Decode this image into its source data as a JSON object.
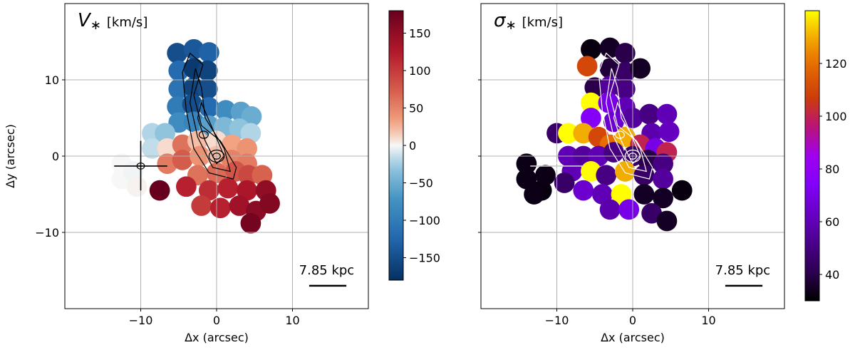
{
  "chart_data": [
    {
      "type": "heatmap",
      "title_symbol": "V",
      "title_subscript": "∗",
      "title_unit": "[km/s]",
      "xlabel": "Δx (arcsec)",
      "ylabel": "Δy (arcsec)",
      "xlim": [
        -20,
        20
      ],
      "ylim": [
        -20,
        20
      ],
      "xticks": [
        -10,
        0,
        10
      ],
      "yticks": [
        -10,
        0,
        10
      ],
      "xtick_labels": [
        "−10",
        "0",
        "10"
      ],
      "ytick_labels": [
        "−10",
        "0",
        "10"
      ],
      "grid": true,
      "colormap": "RdBu_r",
      "colorbar": {
        "min": -180,
        "max": 180,
        "ticks": [
          150,
          100,
          50,
          0,
          -50,
          -100,
          -150
        ],
        "tick_labels": [
          "150",
          "100",
          "50",
          "0",
          "−50",
          "−100",
          "−150"
        ]
      },
      "scalebar_label": "7.85 kpc",
      "contour_color": "#000000",
      "bins": [
        {
          "x": -5.2,
          "y": 13.5,
          "v": -150
        },
        {
          "x": -3.0,
          "y": 14.0,
          "v": -140
        },
        {
          "x": -1.0,
          "y": 13.6,
          "v": -130
        },
        {
          "x": -5.0,
          "y": 11.2,
          "v": -120
        },
        {
          "x": -3.0,
          "y": 11.5,
          "v": -170
        },
        {
          "x": -1.2,
          "y": 11.2,
          "v": -160
        },
        {
          "x": -5.0,
          "y": 8.8,
          "v": -110
        },
        {
          "x": -3.0,
          "y": 9.0,
          "v": -160
        },
        {
          "x": -1.2,
          "y": 8.8,
          "v": -150
        },
        {
          "x": -5.2,
          "y": 6.5,
          "v": -100
        },
        {
          "x": -3.2,
          "y": 6.8,
          "v": -150
        },
        {
          "x": -1.0,
          "y": 6.4,
          "v": -120
        },
        {
          "x": 1.2,
          "y": 6.0,
          "v": -80
        },
        {
          "x": 3.2,
          "y": 5.8,
          "v": -60
        },
        {
          "x": 4.6,
          "y": 5.2,
          "v": -50
        },
        {
          "x": -5.0,
          "y": 4.4,
          "v": -80
        },
        {
          "x": -3.0,
          "y": 4.5,
          "v": -90
        },
        {
          "x": -1.0,
          "y": 4.0,
          "v": -60
        },
        {
          "x": 1.0,
          "y": 3.8,
          "v": -40
        },
        {
          "x": 3.0,
          "y": 3.6,
          "v": -30
        },
        {
          "x": 4.5,
          "y": 3.0,
          "v": -20
        },
        {
          "x": -8.5,
          "y": 3.0,
          "v": -20
        },
        {
          "x": -6.8,
          "y": 3.0,
          "v": -30
        },
        {
          "x": -8.5,
          "y": 1.0,
          "v": -15
        },
        {
          "x": -6.5,
          "y": 1.0,
          "v": 10
        },
        {
          "x": -4.5,
          "y": 1.5,
          "v": 60
        },
        {
          "x": -2.5,
          "y": 2.0,
          "v": 20
        },
        {
          "x": 0.0,
          "y": 2.0,
          "v": 10
        },
        {
          "x": 2.0,
          "y": 1.5,
          "v": 30
        },
        {
          "x": 4.0,
          "y": 1.0,
          "v": 40
        },
        {
          "x": -6.5,
          "y": -1.0,
          "v": 55
        },
        {
          "x": -4.5,
          "y": -0.5,
          "v": 75
        },
        {
          "x": -2.2,
          "y": 0.0,
          "v": 40
        },
        {
          "x": 0.0,
          "y": 0.0,
          "v": 20
        },
        {
          "x": 2.0,
          "y": -0.5,
          "v": 50
        },
        {
          "x": 4.0,
          "y": -1.0,
          "v": 55
        },
        {
          "x": -2.5,
          "y": -2.5,
          "v": 60
        },
        {
          "x": 0.0,
          "y": -2.2,
          "v": 65
        },
        {
          "x": 2.5,
          "y": -2.0,
          "v": 80
        },
        {
          "x": 4.2,
          "y": -2.5,
          "v": 90
        },
        {
          "x": 6.0,
          "y": -2.5,
          "v": 70
        },
        {
          "x": -7.5,
          "y": -4.5,
          "v": 180
        },
        {
          "x": -4.0,
          "y": -4.0,
          "v": 120
        },
        {
          "x": -1.0,
          "y": -4.5,
          "v": 110
        },
        {
          "x": 1.5,
          "y": -4.2,
          "v": 120
        },
        {
          "x": 4.0,
          "y": -4.5,
          "v": 130
        },
        {
          "x": 6.5,
          "y": -4.5,
          "v": 150
        },
        {
          "x": -2.0,
          "y": -6.5,
          "v": 100
        },
        {
          "x": 0.5,
          "y": -6.8,
          "v": 120
        },
        {
          "x": 3.0,
          "y": -6.5,
          "v": 140
        },
        {
          "x": 5.2,
          "y": -7.2,
          "v": 155
        },
        {
          "x": 7.0,
          "y": -6.2,
          "v": 160
        },
        {
          "x": 4.5,
          "y": -8.8,
          "v": 170
        },
        {
          "x": -12.5,
          "y": -1.0,
          "v": 0
        },
        {
          "x": -12.5,
          "y": -3.0,
          "v": 0
        },
        {
          "x": -11.0,
          "y": -2.0,
          "v": -2
        },
        {
          "x": -10.5,
          "y": -4.0,
          "v": 2
        }
      ]
    },
    {
      "type": "heatmap",
      "title_symbol": "σ",
      "title_subscript": "∗",
      "title_unit": "[km/s]",
      "xlabel": "Δx (arcsec)",
      "ylabel": "",
      "xlim": [
        -20,
        20
      ],
      "ylim": [
        -20,
        20
      ],
      "xticks": [
        -10,
        0,
        10
      ],
      "yticks": [
        -10,
        0,
        10
      ],
      "xtick_labels": [
        "−10",
        "0",
        "10"
      ],
      "ytick_labels": [],
      "grid": true,
      "colormap": "gnuplot",
      "colorbar": {
        "min": 30,
        "max": 140,
        "ticks": [
          120,
          100,
          80,
          60,
          40
        ],
        "tick_labels": [
          "120",
          "100",
          "80",
          "60",
          "40"
        ]
      },
      "scalebar_label": "7.85 kpc",
      "contour_color": "#ffffff",
      "bins": [
        {
          "x": -5.5,
          "y": 14.0,
          "v": 32
        },
        {
          "x": -3.0,
          "y": 14.2,
          "v": 35
        },
        {
          "x": -1.0,
          "y": 13.5,
          "v": 40
        },
        {
          "x": -6.0,
          "y": 11.8,
          "v": 110
        },
        {
          "x": -3.0,
          "y": 11.5,
          "v": 38
        },
        {
          "x": -1.0,
          "y": 11.0,
          "v": 45
        },
        {
          "x": 1.0,
          "y": 11.5,
          "v": 35
        },
        {
          "x": -5.0,
          "y": 9.0,
          "v": 40
        },
        {
          "x": -3.0,
          "y": 9.2,
          "v": 55
        },
        {
          "x": -1.0,
          "y": 8.8,
          "v": 50
        },
        {
          "x": -5.5,
          "y": 7.0,
          "v": 140
        },
        {
          "x": -3.2,
          "y": 7.0,
          "v": 70
        },
        {
          "x": -1.0,
          "y": 6.4,
          "v": 60
        },
        {
          "x": -5.5,
          "y": 5.0,
          "v": 75
        },
        {
          "x": -2.5,
          "y": 4.5,
          "v": 65
        },
        {
          "x": 0.0,
          "y": 5.0,
          "v": 55
        },
        {
          "x": 2.2,
          "y": 5.5,
          "v": 50
        },
        {
          "x": 4.5,
          "y": 5.5,
          "v": 60
        },
        {
          "x": 2.5,
          "y": 3.0,
          "v": 58
        },
        {
          "x": 4.8,
          "y": 3.2,
          "v": 62
        },
        {
          "x": -10.0,
          "y": 3.0,
          "v": 45
        },
        {
          "x": -8.5,
          "y": 3.0,
          "v": 140
        },
        {
          "x": -6.5,
          "y": 3.0,
          "v": 130
        },
        {
          "x": -4.5,
          "y": 2.5,
          "v": 110
        },
        {
          "x": -3.0,
          "y": 1.5,
          "v": 120
        },
        {
          "x": -1.0,
          "y": 2.5,
          "v": 130
        },
        {
          "x": 1.0,
          "y": 1.5,
          "v": 100
        },
        {
          "x": 3.0,
          "y": 1.0,
          "v": 70
        },
        {
          "x": 4.5,
          "y": 0.5,
          "v": 100
        },
        {
          "x": -8.5,
          "y": 0.0,
          "v": 60
        },
        {
          "x": -6.5,
          "y": 0.0,
          "v": 55
        },
        {
          "x": -4.5,
          "y": 0.0,
          "v": 60
        },
        {
          "x": -2.5,
          "y": 0.5,
          "v": 50
        },
        {
          "x": 0.0,
          "y": 0.0,
          "v": 45
        },
        {
          "x": 2.0,
          "y": -0.5,
          "v": 40
        },
        {
          "x": 4.0,
          "y": -1.0,
          "v": 50
        },
        {
          "x": -8.0,
          "y": -2.0,
          "v": 60
        },
        {
          "x": -5.5,
          "y": -2.0,
          "v": 140
        },
        {
          "x": -3.5,
          "y": -2.5,
          "v": 50
        },
        {
          "x": -1.0,
          "y": -2.0,
          "v": 130
        },
        {
          "x": 1.5,
          "y": -2.5,
          "v": 45
        },
        {
          "x": 4.0,
          "y": -3.0,
          "v": 55
        },
        {
          "x": -12.0,
          "y": -4.5,
          "v": 32
        },
        {
          "x": -9.0,
          "y": -3.5,
          "v": 45
        },
        {
          "x": -6.5,
          "y": -4.5,
          "v": 65
        },
        {
          "x": -4.0,
          "y": -5.0,
          "v": 60
        },
        {
          "x": -1.5,
          "y": -5.0,
          "v": 140
        },
        {
          "x": 1.5,
          "y": -5.0,
          "v": 35
        },
        {
          "x": 4.0,
          "y": -5.5,
          "v": 35
        },
        {
          "x": 6.5,
          "y": -4.5,
          "v": 32
        },
        {
          "x": -3.0,
          "y": -7.0,
          "v": 58
        },
        {
          "x": -0.5,
          "y": -7.0,
          "v": 70
        },
        {
          "x": 2.5,
          "y": -7.5,
          "v": 45
        },
        {
          "x": 4.5,
          "y": -8.5,
          "v": 35
        },
        {
          "x": -14.0,
          "y": -1.0,
          "v": 33
        },
        {
          "x": -14.0,
          "y": -3.0,
          "v": 33
        },
        {
          "x": -11.5,
          "y": -2.5,
          "v": 33
        },
        {
          "x": -13.0,
          "y": -5.0,
          "v": 33
        }
      ]
    }
  ]
}
